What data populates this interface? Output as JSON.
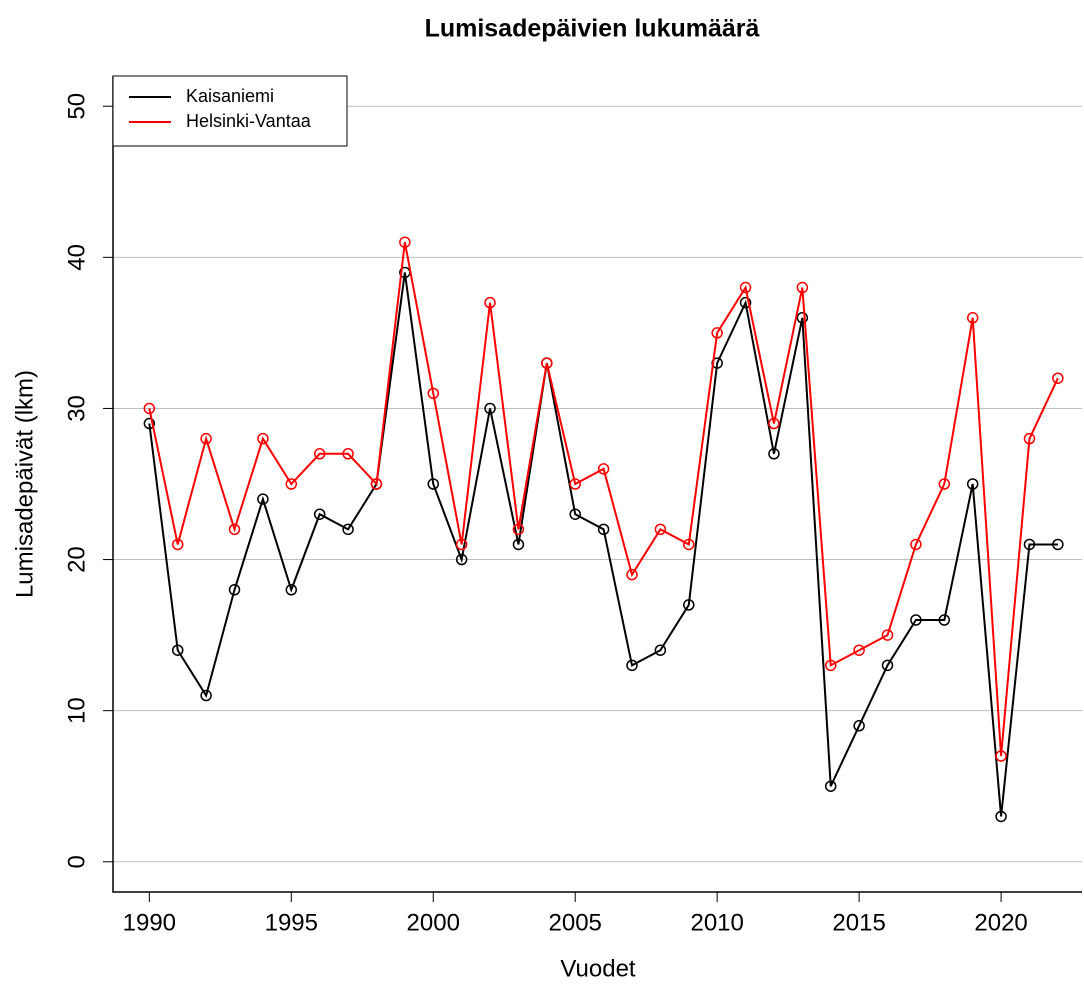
{
  "chart_data": {
    "type": "line",
    "title": "Lumisadepäivien lukumäärä",
    "x_label": "Vuodet",
    "y_label": "Lumisadepäivät (lkm)",
    "x": [
      1990,
      1991,
      1992,
      1993,
      1994,
      1995,
      1996,
      1997,
      1998,
      1999,
      2000,
      2001,
      2002,
      2003,
      2004,
      2005,
      2006,
      2007,
      2008,
      2009,
      2010,
      2011,
      2012,
      2013,
      2014,
      2015,
      2016,
      2017,
      2018,
      2019,
      2020,
      2021,
      2022
    ],
    "series": [
      {
        "name": "Kaisaniemi",
        "color": "#000000",
        "values": [
          29,
          14,
          11,
          18,
          24,
          18,
          23,
          22,
          25,
          39,
          25,
          20,
          30,
          21,
          33,
          23,
          22,
          13,
          14,
          17,
          33,
          37,
          27,
          36,
          5,
          9,
          13,
          16,
          16,
          25,
          3,
          21,
          21
        ]
      },
      {
        "name": "Helsinki-Vantaa",
        "color": "#ff0000",
        "values": [
          30,
          21,
          28,
          22,
          28,
          25,
          27,
          27,
          25,
          41,
          31,
          21,
          37,
          22,
          33,
          25,
          26,
          19,
          22,
          21,
          35,
          38,
          29,
          38,
          13,
          14,
          15,
          21,
          25,
          36,
          7,
          28,
          32
        ]
      }
    ],
    "xlim": [
      1988.72,
      2022.85
    ],
    "ylim": [
      -2,
      52
    ],
    "xticks": [
      1990,
      1995,
      2000,
      2005,
      2010,
      2015,
      2020
    ],
    "yticks": [
      0,
      10,
      20,
      30,
      40,
      50
    ],
    "grid": true,
    "legend": "top-left"
  }
}
